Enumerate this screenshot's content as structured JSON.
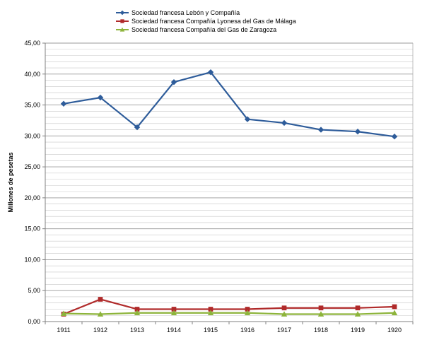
{
  "chart_data": {
    "type": "line",
    "categories": [
      "1911",
      "1912",
      "1913",
      "1914",
      "1915",
      "1916",
      "1917",
      "1918",
      "1919",
      "1920"
    ],
    "series": [
      {
        "name": "Sociedad francesa Lebón y Compañía",
        "color": "#2e5c9a",
        "marker": "diamond",
        "values": [
          35.2,
          36.2,
          31.4,
          38.7,
          40.3,
          32.7,
          32.1,
          31.0,
          30.7,
          29.9
        ]
      },
      {
        "name": "Sociedad francesa Compañía Lyonesa del Gas de Málaga",
        "color": "#b02a2a",
        "marker": "square",
        "values": [
          1.2,
          3.6,
          2.0,
          2.0,
          2.0,
          2.0,
          2.2,
          2.2,
          2.2,
          2.4
        ]
      },
      {
        "name": "Sociedad francesa Compañía del Gas de Zaragoza",
        "color": "#8db43b",
        "marker": "triangle",
        "values": [
          1.3,
          1.2,
          1.4,
          1.4,
          1.4,
          1.4,
          1.2,
          1.2,
          1.2,
          1.4
        ]
      }
    ],
    "ylabel": "Millones de pesetas",
    "xlabel": "",
    "ylim": [
      0,
      45
    ],
    "y_ticks": [
      "0,00",
      "5,00",
      "10,00",
      "15,00",
      "20,00",
      "25,00",
      "30,00",
      "35,00",
      "40,00",
      "45,00"
    ],
    "grid": true,
    "legend_position": "top-left"
  }
}
